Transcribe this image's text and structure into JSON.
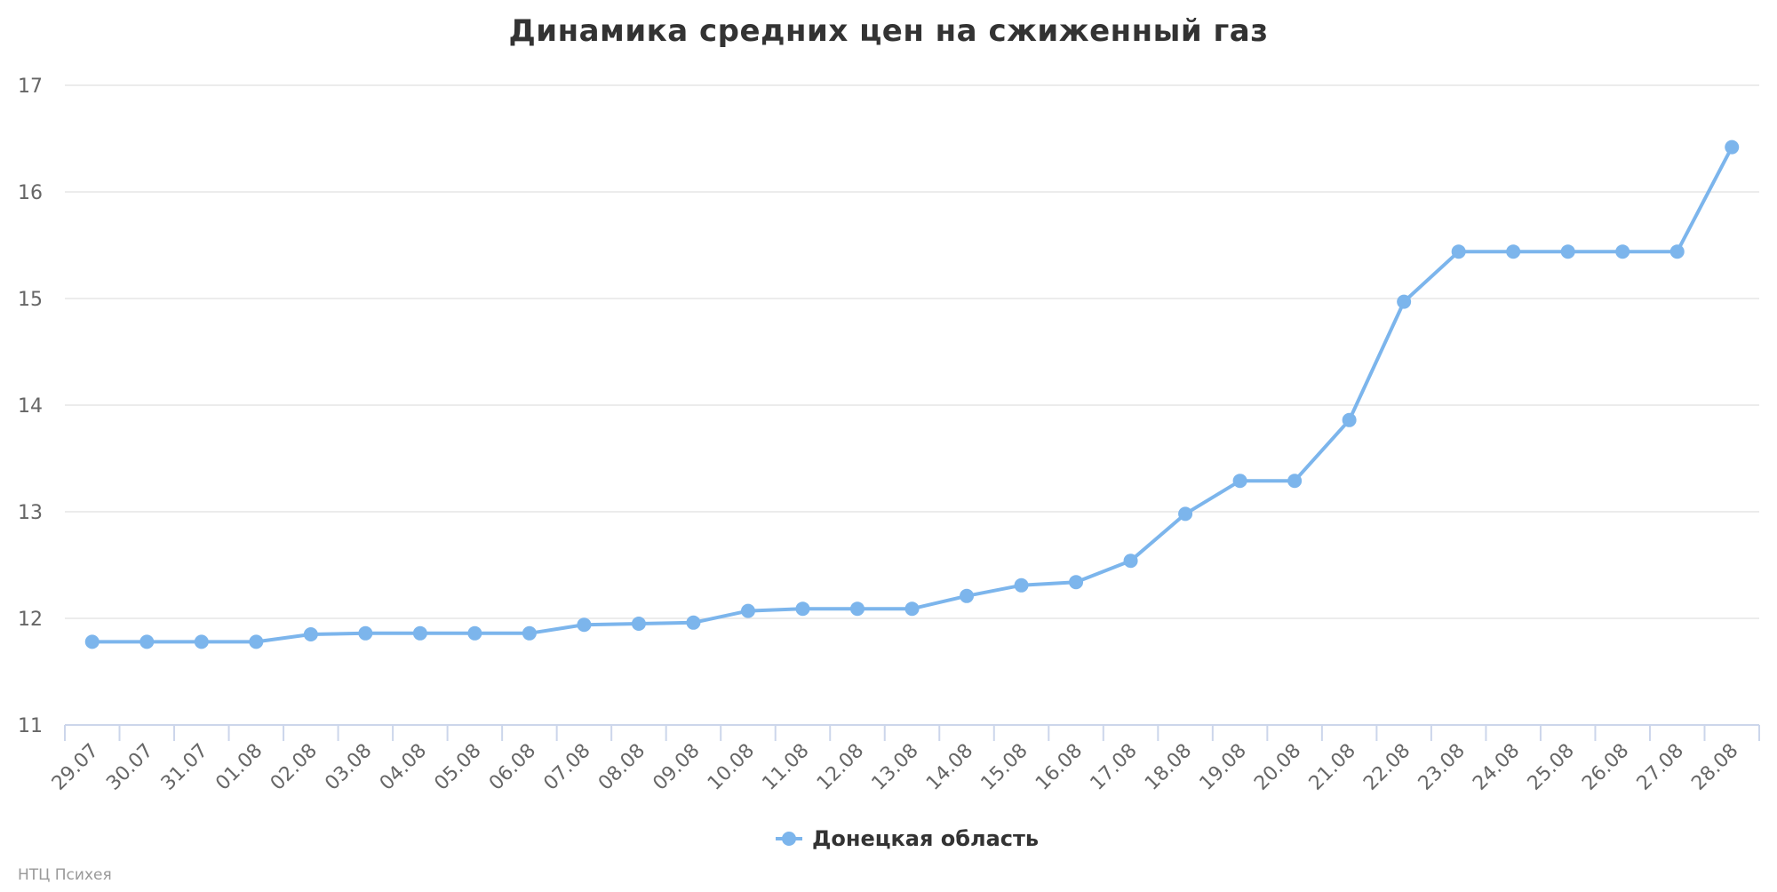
{
  "chart_data": {
    "type": "line",
    "title": "Динамика средних цен на сжиженный газ",
    "xlabel": "",
    "ylabel": "",
    "ylim": [
      11,
      17
    ],
    "yticks": [
      "11",
      "12",
      "13",
      "14",
      "15",
      "16",
      "17"
    ],
    "grid": true,
    "legend_position": "bottom",
    "categories": [
      "29.07",
      "30.07",
      "31.07",
      "01.08",
      "02.08",
      "03.08",
      "04.08",
      "05.08",
      "06.08",
      "07.08",
      "08.08",
      "09.08",
      "10.08",
      "11.08",
      "12.08",
      "13.08",
      "14.08",
      "15.08",
      "16.08",
      "17.08",
      "18.08",
      "19.08",
      "20.08",
      "21.08",
      "22.08",
      "23.08",
      "24.08",
      "25.08",
      "26.08",
      "27.08",
      "28.08"
    ],
    "series": [
      {
        "name": "Донецкая область",
        "color": "#7cb5ec",
        "values": [
          11.78,
          11.78,
          11.78,
          11.78,
          11.85,
          11.86,
          11.86,
          11.86,
          11.86,
          11.94,
          11.95,
          11.96,
          12.07,
          12.09,
          12.09,
          12.09,
          12.21,
          12.31,
          12.34,
          12.54,
          12.98,
          13.29,
          13.29,
          13.86,
          14.97,
          15.44,
          15.44,
          15.44,
          15.44,
          15.44,
          16.42
        ]
      }
    ]
  },
  "credit": "НТЦ Психея"
}
